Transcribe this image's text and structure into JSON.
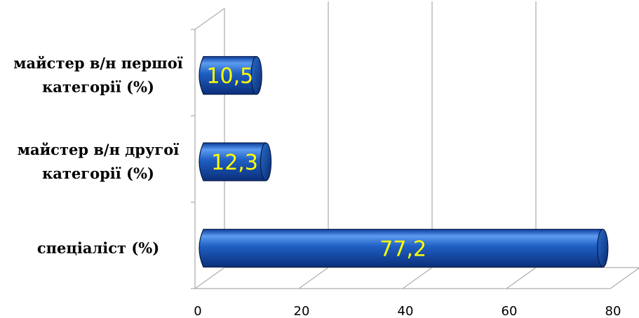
{
  "chart_data": {
    "type": "bar",
    "orientation": "horizontal",
    "three_d": true,
    "categories": [
      "майстер в/н першої категорії (%)",
      "майстер в/н другої категорії (%)",
      "спеціаліст (%)"
    ],
    "category_lines": [
      [
        "майстер в/н першої",
        "категорії (%)"
      ],
      [
        "майстер в/н другої",
        "категорії (%)"
      ],
      [
        "спеціаліст (%)"
      ]
    ],
    "values": [
      10.5,
      12.3,
      77.2
    ],
    "data_labels": [
      "10,5",
      "12,3",
      "77,2"
    ],
    "xlim": [
      0,
      80
    ],
    "x_ticks": [
      0,
      20,
      40,
      60,
      80
    ],
    "x_tick_labels": [
      "0",
      "20",
      "40",
      "60",
      "80"
    ],
    "grid": true,
    "legend": "none",
    "colors": {
      "bar": "#1f5fc2",
      "bar_dark": "#0b2f7a",
      "bar_light": "#5c9cf0",
      "label": "#ffff00",
      "grid": "#9a9a9a"
    }
  }
}
